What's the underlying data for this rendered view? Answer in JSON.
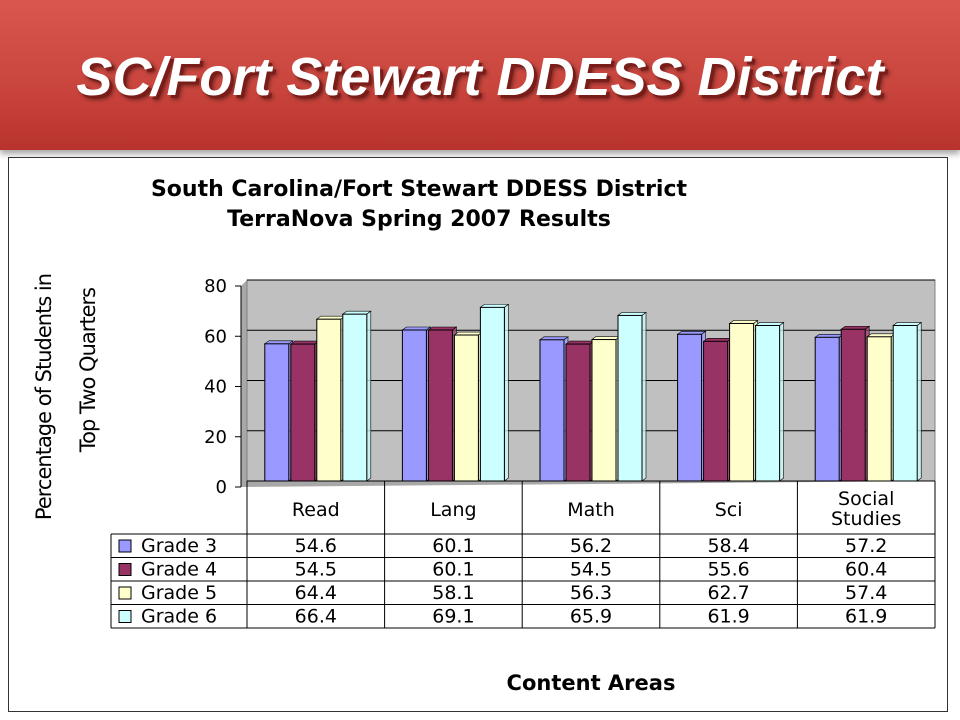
{
  "slide": {
    "title": "SC/Fort Stewart DDESS District"
  },
  "chart_data": {
    "type": "bar",
    "title": "South Carolina/Fort Stewart DDESS District",
    "subtitle": "TerraNova Spring 2007 Results",
    "ylabel_line1": "Percentage of Students in",
    "ylabel_line2": "Top Two Quarters",
    "xlabel": "Content Areas",
    "ylim": [
      0,
      80
    ],
    "yticks": [
      "0",
      "20",
      "40",
      "60",
      "80"
    ],
    "grid": true,
    "legend": "data-table-left",
    "categories": [
      "Read",
      "Lang",
      "Math",
      "Sci",
      "Social Studies"
    ],
    "series": [
      {
        "name": "Grade 3",
        "color": "#9999ff",
        "values": [
          54.6,
          60.1,
          56.2,
          58.4,
          57.2
        ]
      },
      {
        "name": "Grade 4",
        "color": "#993366",
        "values": [
          54.5,
          60.1,
          54.5,
          55.6,
          60.4
        ]
      },
      {
        "name": "Grade 5",
        "color": "#ffffcc",
        "values": [
          64.4,
          58.1,
          56.3,
          62.7,
          57.4
        ]
      },
      {
        "name": "Grade 6",
        "color": "#ccffff",
        "values": [
          66.4,
          69.1,
          65.9,
          61.9,
          61.9
        ]
      }
    ]
  }
}
